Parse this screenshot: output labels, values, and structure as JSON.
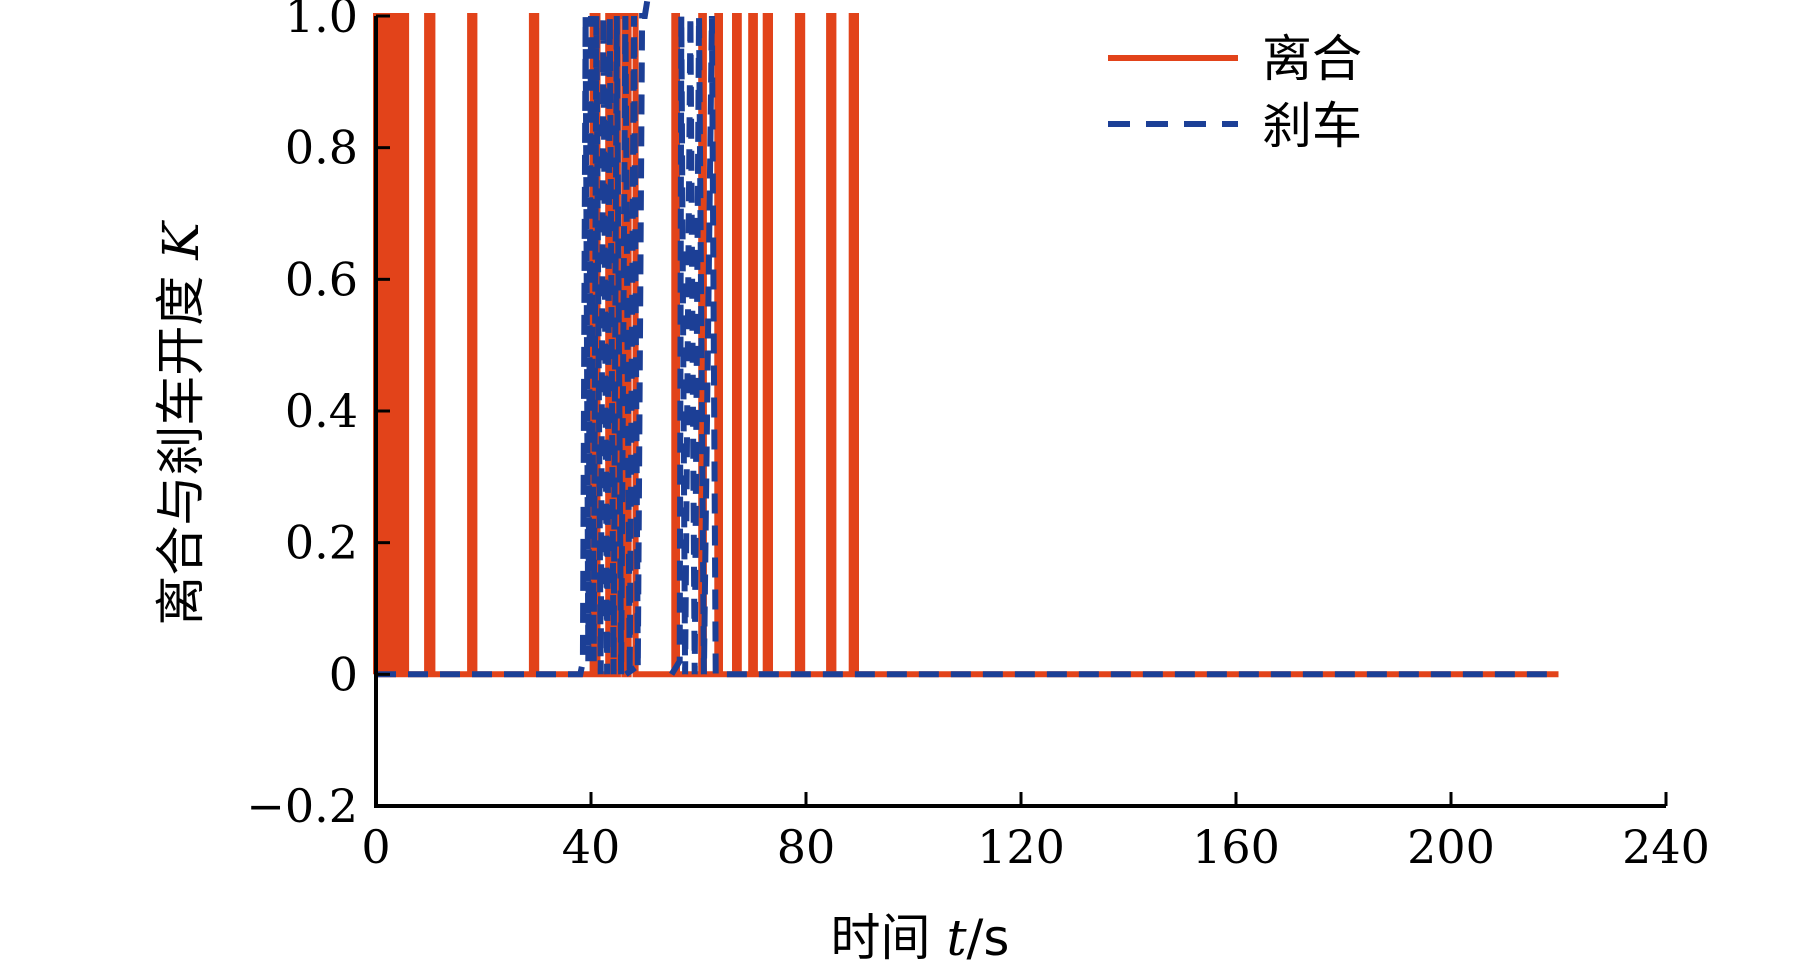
{
  "chart_data": {
    "type": "line",
    "xlabel": "时间 t/s",
    "ylabel": "离合与刹车开度 K",
    "xlim": [
      0,
      240
    ],
    "ylim": [
      -0.2,
      1.0
    ],
    "x_ticks": [
      "0",
      "40",
      "80",
      "120",
      "160",
      "200",
      "240"
    ],
    "y_ticks": [
      "-0.2",
      "0",
      "0.2",
      "0.4",
      "0.6",
      "0.8",
      "1.0"
    ],
    "grid": false,
    "legend": "top-right",
    "colors": {
      "clutch": "#e2431a",
      "brake": "#1c3f96"
    },
    "series": [
      {
        "name": "离合",
        "style": "solid",
        "pulses": [
          [
            0,
            0.6
          ],
          [
            1.2,
            2.0
          ],
          [
            2.8,
            3.5
          ],
          [
            4.5,
            5.6
          ],
          [
            9.5,
            10.5
          ],
          [
            17.5,
            18.3
          ],
          [
            29,
            29.8
          ],
          [
            40.3,
            41.2
          ],
          [
            43.2,
            44
          ],
          [
            45,
            46.2
          ],
          [
            47,
            48.3
          ],
          [
            55.5,
            56
          ],
          [
            60.5,
            61
          ],
          [
            63.5,
            64
          ],
          [
            66.8,
            67.5
          ],
          [
            69.8,
            70.5
          ],
          [
            72.5,
            73.3
          ],
          [
            78.5,
            79.3
          ],
          [
            84.3,
            85.1
          ],
          [
            88.5,
            89.3
          ]
        ],
        "end_x": 220
      },
      {
        "name": "刹车",
        "style": "dashed",
        "segments": [
          [
            [
              0,
              0
            ],
            [
              38,
              0
            ],
            [
              38.5,
              0.02
            ],
            [
              39,
              1
            ],
            [
              39.5,
              0.02
            ],
            [
              40,
              1
            ],
            [
              40.5,
              0.02
            ],
            [
              41,
              1
            ],
            [
              41.8,
              0
            ],
            [
              42.3,
              1
            ],
            [
              43,
              0
            ],
            [
              43.5,
              1
            ],
            [
              44.2,
              0
            ],
            [
              44.8,
              1
            ],
            [
              45.6,
              0
            ],
            [
              46.4,
              1
            ],
            [
              47.2,
              0
            ],
            [
              48,
              1
            ],
            [
              48.7,
              0.01
            ],
            [
              49.5,
              1
            ],
            [
              50,
              1
            ],
            [
              50.6,
              1.03
            ]
          ],
          [
            [
              46.5,
              0
            ],
            [
              48.2,
              0.01
            ]
          ],
          [
            [
              55,
              0
            ],
            [
              56.5,
              0.02
            ],
            [
              56.8,
              1
            ],
            [
              57.5,
              0
            ],
            [
              58.5,
              1
            ],
            [
              59.3,
              0
            ],
            [
              60.1,
              1
            ],
            [
              61,
              0
            ],
            [
              62.5,
              1
            ],
            [
              63.2,
              0
            ],
            [
              220,
              0
            ]
          ]
        ]
      }
    ]
  }
}
